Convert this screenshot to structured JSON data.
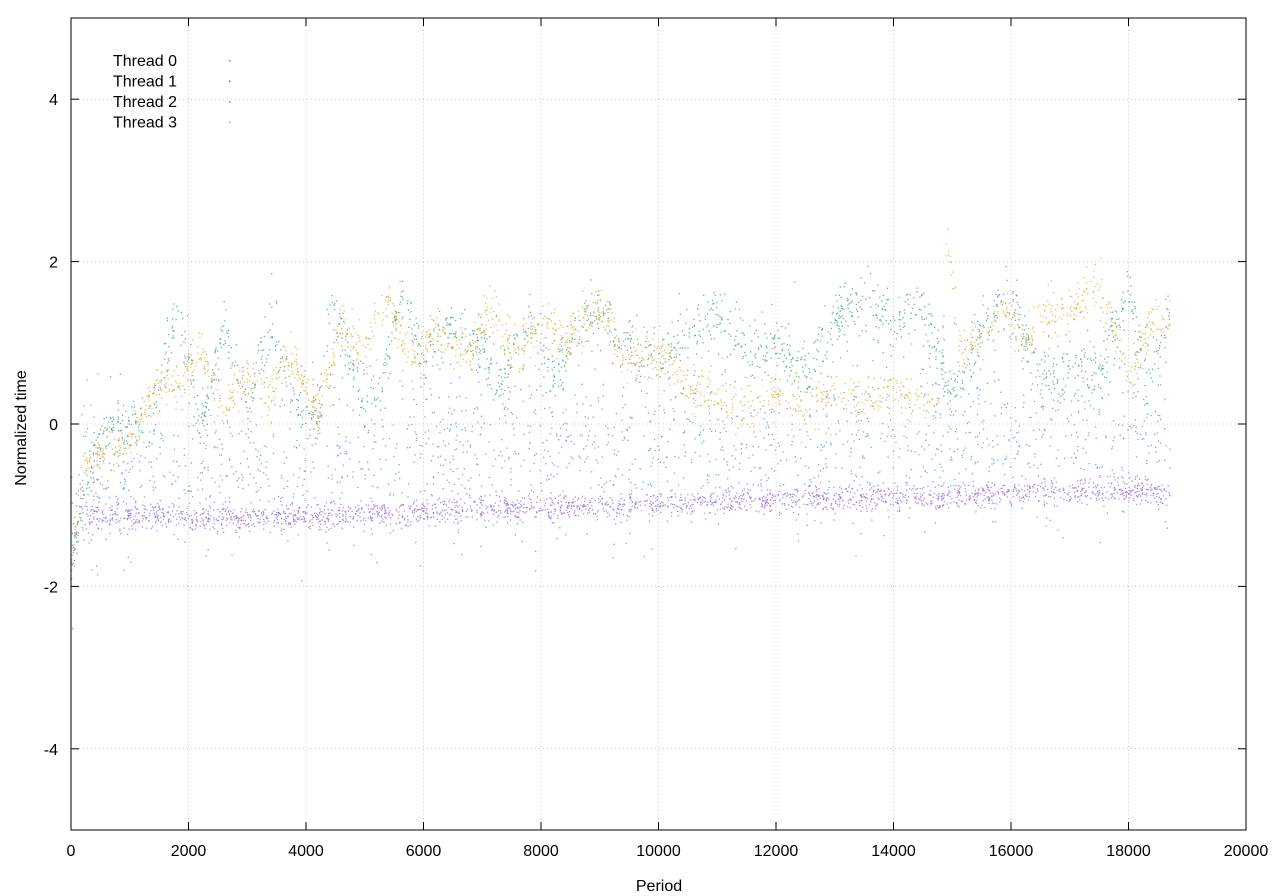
{
  "chart_data": {
    "type": "scatter",
    "title": "",
    "xlabel": "Period",
    "ylabel": "Normalized time",
    "xlim": [
      0,
      20000
    ],
    "ylim": [
      -5,
      5
    ],
    "x_ticks": [
      0,
      2000,
      4000,
      6000,
      8000,
      10000,
      12000,
      14000,
      16000,
      18000,
      20000
    ],
    "y_ticks": [
      -4,
      -2,
      0,
      2,
      4
    ],
    "x_tick_labels": [
      "0",
      "2000",
      "4000",
      "6000",
      "8000",
      "10000",
      "12000",
      "14000",
      "16000",
      "18000",
      "20000"
    ],
    "y_tick_labels": [
      "-4",
      "-2",
      "0",
      "2",
      "4"
    ],
    "grid": true,
    "legend_position": "top-left",
    "series": [
      {
        "name": "Thread 0",
        "color": "#9467d9",
        "marker": "dot",
        "trend": [
          [
            0,
            -1.7
          ],
          [
            200,
            -1.1
          ],
          [
            1000,
            -1.1
          ],
          [
            3000,
            -1.15
          ],
          [
            5000,
            -1.1
          ],
          [
            7000,
            -1.05
          ],
          [
            9000,
            -1.0
          ],
          [
            11000,
            -0.95
          ],
          [
            13000,
            -0.9
          ],
          [
            15000,
            -0.9
          ],
          [
            17000,
            -0.8
          ],
          [
            18700,
            -0.85
          ]
        ]
      },
      {
        "name": "Thread 1",
        "color": "#2a9d78",
        "marker": "dot",
        "trend": [
          [
            0,
            -1.5
          ],
          [
            300,
            -0.5
          ],
          [
            800,
            0.0
          ],
          [
            1300,
            -0.1
          ],
          [
            1800,
            1.4
          ],
          [
            2200,
            0.0
          ],
          [
            2600,
            1.2
          ],
          [
            3000,
            0.2
          ],
          [
            3400,
            1.3
          ],
          [
            3800,
            0.3
          ],
          [
            4200,
            0.0
          ],
          [
            4400,
            1.5
          ],
          [
            4800,
            0.6
          ],
          [
            5200,
            0.2
          ],
          [
            5600,
            1.6
          ],
          [
            6000,
            0.7
          ],
          [
            6400,
            1.2
          ],
          [
            7000,
            0.9
          ],
          [
            7300,
            0.4
          ],
          [
            7800,
            1.3
          ],
          [
            8200,
            0.6
          ],
          [
            8800,
            1.4
          ],
          [
            9200,
            1.2
          ],
          [
            9600,
            0.9
          ],
          [
            10000,
            0.8
          ],
          [
            10500,
            1.1
          ],
          [
            11000,
            1.4
          ],
          [
            11500,
            0.8
          ],
          [
            12000,
            1.1
          ],
          [
            12500,
            0.6
          ],
          [
            13000,
            1.3
          ],
          [
            13500,
            1.6
          ],
          [
            14000,
            1.2
          ],
          [
            14500,
            1.4
          ],
          [
            15000,
            0.3
          ],
          [
            15500,
            1.2
          ],
          [
            16000,
            1.5
          ],
          [
            16500,
            0.6
          ],
          [
            17000,
            0.7
          ],
          [
            17500,
            0.6
          ],
          [
            18000,
            1.7
          ],
          [
            18300,
            0.5
          ],
          [
            18700,
            1.3
          ]
        ]
      },
      {
        "name": "Thread 2",
        "color": "#4a86e0",
        "marker": "dot",
        "trend": [
          [
            0,
            -1.7
          ],
          [
            200,
            -0.9
          ],
          [
            1000,
            -0.8
          ],
          [
            3000,
            -0.7
          ],
          [
            5000,
            -0.6
          ],
          [
            7000,
            -0.55
          ],
          [
            9000,
            -0.5
          ],
          [
            11000,
            -0.45
          ],
          [
            13000,
            -0.4
          ],
          [
            15000,
            -0.4
          ],
          [
            17000,
            -0.35
          ],
          [
            18700,
            -0.4
          ]
        ]
      },
      {
        "name": "Thread 3",
        "color": "#e0a820",
        "marker": "dot",
        "trend": [
          [
            0,
            -1.6
          ],
          [
            200,
            -0.6
          ],
          [
            500,
            -0.3
          ],
          [
            1000,
            -0.3
          ],
          [
            1400,
            0.4
          ],
          [
            1800,
            0.5
          ],
          [
            2200,
            0.9
          ],
          [
            2600,
            0.2
          ],
          [
            3000,
            0.6
          ],
          [
            3400,
            0.4
          ],
          [
            3800,
            0.8
          ],
          [
            4200,
            0.1
          ],
          [
            4600,
            1.2
          ],
          [
            5000,
            0.9
          ],
          [
            5400,
            1.5
          ],
          [
            5800,
            0.7
          ],
          [
            6200,
            1.2
          ],
          [
            6800,
            0.8
          ],
          [
            7100,
            1.5
          ],
          [
            7600,
            0.8
          ],
          [
            8000,
            1.3
          ],
          [
            8400,
            1.0
          ],
          [
            9000,
            1.5
          ],
          [
            9400,
            0.8
          ],
          [
            10000,
            0.9
          ],
          [
            10500,
            0.4
          ],
          [
            11000,
            0.3
          ],
          [
            11500,
            0.2
          ],
          [
            12000,
            0.4
          ],
          [
            12500,
            0.2
          ],
          [
            13000,
            0.4
          ],
          [
            13500,
            0.3
          ],
          [
            14000,
            0.4
          ],
          [
            14800,
            0.3
          ],
          [
            14900,
            2.4
          ],
          [
            15100,
            1.0
          ],
          [
            15500,
            1.0
          ],
          [
            15800,
            1.5
          ],
          [
            16200,
            1.0
          ],
          [
            16600,
            1.4
          ],
          [
            17000,
            1.4
          ],
          [
            17500,
            1.7
          ],
          [
            18000,
            0.6
          ],
          [
            18400,
            1.3
          ],
          [
            18700,
            1.2
          ]
        ]
      }
    ]
  }
}
